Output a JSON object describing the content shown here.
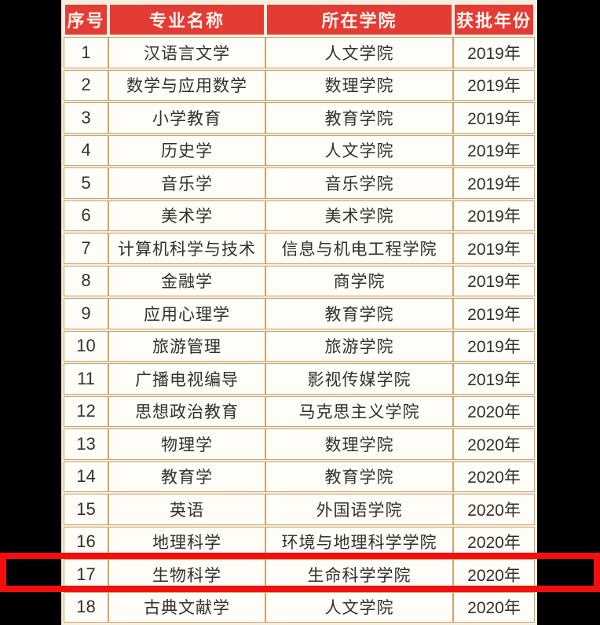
{
  "colors": {
    "page-bg": "#000000",
    "gap-cream": "#f6efdf",
    "cell-bg": "#fffdf7",
    "border-tan": "#cda26b",
    "header-red": "#e53b35",
    "header-text": "#fdf6ee",
    "body-text": "#33302c",
    "highlight-red": "#f40e0e"
  },
  "table": {
    "columns": [
      {
        "key": "index",
        "label": "序号"
      },
      {
        "key": "major",
        "label": "专业名称"
      },
      {
        "key": "college",
        "label": "所在学院"
      },
      {
        "key": "year",
        "label": "获批年份"
      }
    ],
    "rows": [
      [
        "1",
        "汉语言文学",
        "人文学院",
        "2019年"
      ],
      [
        "2",
        "数学与应用数学",
        "数理学院",
        "2019年"
      ],
      [
        "3",
        "小学教育",
        "教育学院",
        "2019年"
      ],
      [
        "4",
        "历史学",
        "人文学院",
        "2019年"
      ],
      [
        "5",
        "音乐学",
        "音乐学院",
        "2019年"
      ],
      [
        "6",
        "美术学",
        "美术学院",
        "2019年"
      ],
      [
        "7",
        "计算机科学与技术",
        "信息与机电工程学院",
        "2019年"
      ],
      [
        "8",
        "金融学",
        "商学院",
        "2019年"
      ],
      [
        "9",
        "应用心理学",
        "教育学院",
        "2019年"
      ],
      [
        "10",
        "旅游管理",
        "旅游学院",
        "2019年"
      ],
      [
        "11",
        "广播电视编导",
        "影视传媒学院",
        "2019年"
      ],
      [
        "12",
        "思想政治教育",
        "马克思主义学院",
        "2020年"
      ],
      [
        "13",
        "物理学",
        "数理学院",
        "2020年"
      ],
      [
        "14",
        "教育学",
        "教育学院",
        "2020年"
      ],
      [
        "15",
        "英语",
        "外国语学院",
        "2020年"
      ],
      [
        "16",
        "地理科学",
        "环境与地理科学学院",
        "2020年"
      ],
      [
        "17",
        "生物科学",
        "生命科学学院",
        "2020年"
      ],
      [
        "18",
        "古典文献学",
        "人文学院",
        "2020年"
      ]
    ],
    "highlight": {
      "row_number": "17",
      "style": "thick red rectangle spanning full image width"
    }
  }
}
